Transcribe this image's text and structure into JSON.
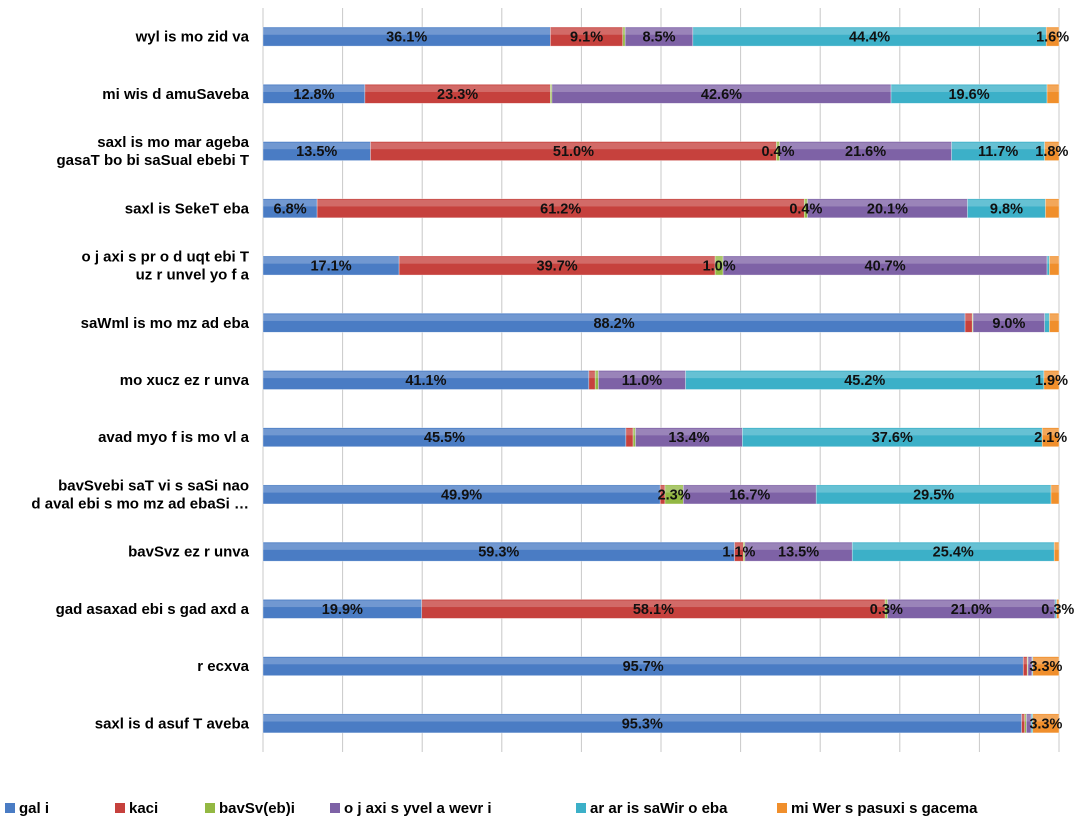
{
  "colors": {
    "gali": "#4a7cc4",
    "kaci": "#c6413d",
    "bavSveb": "#93b843",
    "ojaxi": "#7e62a6",
    "arari": "#3cb0c8",
    "miWers": "#f08f2c"
  },
  "chart_data": {
    "type": "bar",
    "orientation": "horizontal",
    "stacked": "percent",
    "grid": true,
    "legend_position": "bottom",
    "xlim": [
      0,
      100
    ],
    "categories": [
      "wyl is mo zid va",
      "mi wis d amuSaveba",
      "saxl is mo mar ageba gasaT bo bi saSual ebebi T",
      "saxl is SekeT eba",
      "o j axi s pr o d uqt ebi T uz r unvel yo f a",
      "saWml is mo mz ad eba",
      "mo xucz ez r unva",
      "avad myo f is mo vl a",
      "bavSvebi saT vi s saSi nao d aval ebi s mo mz ad ebaSi …",
      "bavSvz ez r unva",
      "gad asaxad ebi s gad axd a",
      "r ecxva",
      "saxl is d asuf T aveba"
    ],
    "category_lines": [
      [
        "wyl is mo zid va"
      ],
      [
        "mi wis d amuSaveba"
      ],
      [
        "saxl is mo mar ageba",
        "gasaT bo bi saSual ebebi T"
      ],
      [
        "saxl is SekeT eba"
      ],
      [
        "o j axi s pr o d uqt ebi T",
        "uz r unvel yo f a"
      ],
      [
        "saWml is mo mz ad eba"
      ],
      [
        "mo xucz ez r unva"
      ],
      [
        "avad myo f is mo vl a"
      ],
      [
        "bavSvebi saT vi s saSi nao",
        "d aval ebi s mo mz ad ebaSi …"
      ],
      [
        "bavSvz ez r unva"
      ],
      [
        "gad asaxad ebi s gad axd a"
      ],
      [
        "r ecxva"
      ],
      [
        "saxl is d asuf T aveba"
      ]
    ],
    "series": [
      {
        "name": "gal i",
        "color_key": "gali",
        "values": [
          36.1,
          12.8,
          13.5,
          6.8,
          17.1,
          88.2,
          41.1,
          45.5,
          49.9,
          59.3,
          19.9,
          95.7,
          95.3
        ]
      },
      {
        "name": "kaci",
        "color_key": "kaci",
        "values": [
          9.1,
          23.3,
          51.0,
          61.2,
          39.7,
          0.9,
          0.8,
          0.9,
          0.6,
          1.1,
          58.1,
          0.5,
          0.4
        ]
      },
      {
        "name": "bavSv(eb)i",
        "color_key": "bavSveb",
        "values": [
          0.3,
          0.2,
          0.4,
          0.4,
          1.0,
          0.1,
          0.4,
          0.3,
          2.3,
          0.2,
          0.3,
          0.1,
          0.2
        ]
      },
      {
        "name": "o j axi s yvel a wevr i",
        "color_key": "ojaxi",
        "values": [
          8.5,
          42.6,
          21.6,
          20.1,
          40.7,
          9.0,
          11.0,
          13.4,
          16.7,
          13.5,
          21.0,
          0.5,
          0.6
        ]
      },
      {
        "name": "ar ar is saWir o eba",
        "color_key": "arari",
        "values": [
          44.4,
          19.6,
          11.7,
          9.8,
          0.3,
          0.6,
          45.2,
          37.6,
          29.5,
          25.4,
          0.2,
          0.1,
          0.2
        ]
      },
      {
        "name": "mi Wer s pasuxi s gacema",
        "color_key": "miWers",
        "values": [
          1.6,
          1.5,
          1.8,
          1.7,
          1.2,
          1.2,
          1.9,
          2.1,
          1.0,
          0.6,
          0.3,
          3.3,
          3.3
        ]
      }
    ],
    "labels": [
      [
        "36.1%",
        "9.1%",
        "",
        "8.5%",
        "44.4%",
        "1.6%"
      ],
      [
        "12.8%",
        "23.3%",
        "",
        "42.6%",
        "19.6%",
        ""
      ],
      [
        "13.5%",
        "51.0%",
        "0.4%",
        "21.6%",
        "11.7%",
        "1.8%"
      ],
      [
        "6.8%",
        "61.2%",
        "0.4%",
        "20.1%",
        "9.8%",
        ""
      ],
      [
        "17.1%",
        "39.7%",
        "1.0%",
        "40.7%",
        "",
        ""
      ],
      [
        "88.2%",
        "",
        "",
        "9.0%",
        "",
        ""
      ],
      [
        "41.1%",
        "",
        "",
        "11.0%",
        "45.2%",
        "1.9%"
      ],
      [
        "45.5%",
        "",
        "",
        "13.4%",
        "37.6%",
        "2.1%"
      ],
      [
        "49.9%",
        "",
        "2.3%",
        "16.7%",
        "29.5%",
        ""
      ],
      [
        "59.3%",
        "1.1%",
        "",
        "13.5%",
        "25.4%",
        ""
      ],
      [
        "19.9%",
        "58.1%",
        "0.3%",
        "21.0%",
        "",
        "0.3%"
      ],
      [
        "95.7%",
        "",
        "",
        "",
        "",
        "3.3%"
      ],
      [
        "95.3%",
        "",
        "",
        "",
        "",
        "3.3%"
      ]
    ]
  }
}
